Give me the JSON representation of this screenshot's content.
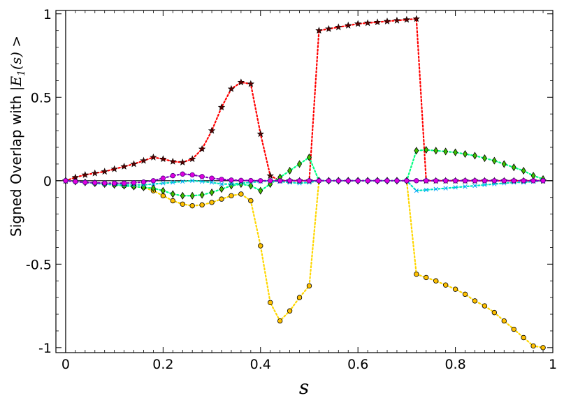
{
  "chart_data": {
    "type": "scatter",
    "xlabel": "s",
    "ylabel_prefix": "Signed Overlap with ",
    "ylabel_math": "|E",
    "ylabel_sub": "1",
    "ylabel_math_suffix": "(s) >",
    "xlim": [
      -0.02,
      1.0
    ],
    "ylim": [
      -1.03,
      1.02
    ],
    "x_ticks": [
      {
        "value": 0,
        "label": "0"
      },
      {
        "value": 0.2,
        "label": "0.2"
      },
      {
        "value": 0.4,
        "label": "0.4"
      },
      {
        "value": 0.6,
        "label": "0.6"
      },
      {
        "value": 0.8,
        "label": "0.8"
      },
      {
        "value": 1.0,
        "label": "1"
      }
    ],
    "y_ticks": [
      {
        "value": -1,
        "label": "-1"
      },
      {
        "value": -0.5,
        "label": "-0.5"
      },
      {
        "value": 0,
        "label": "0"
      },
      {
        "value": 0.5,
        "label": "0.5"
      },
      {
        "value": 1,
        "label": "1"
      }
    ],
    "grid": false,
    "legend": "none",
    "x": [
      0,
      0.02,
      0.04,
      0.06,
      0.08,
      0.1,
      0.12,
      0.14,
      0.16,
      0.18,
      0.2,
      0.22,
      0.24,
      0.26,
      0.28,
      0.3,
      0.32,
      0.34,
      0.36,
      0.38,
      0.4,
      0.42,
      0.44,
      0.46,
      0.48,
      0.5,
      0.52,
      0.54,
      0.56,
      0.58,
      0.6,
      0.62,
      0.64,
      0.66,
      0.68,
      0.7,
      0.72,
      0.74,
      0.76,
      0.78,
      0.8,
      0.82,
      0.84,
      0.86,
      0.88,
      0.9,
      0.92,
      0.94,
      0.96,
      0.98
    ],
    "series": [
      {
        "marker": "star",
        "line_color": "#ff0000",
        "fill": "#5a0000",
        "stroke": "#000000",
        "values": [
          0,
          0.02,
          0.035,
          0.045,
          0.055,
          0.07,
          0.085,
          0.1,
          0.12,
          0.14,
          0.13,
          0.115,
          0.11,
          0.13,
          0.19,
          0.3,
          0.44,
          0.55,
          0.59,
          0.58,
          0.28,
          0.03,
          0,
          0,
          0,
          0,
          0.9,
          0.91,
          0.92,
          0.93,
          0.94,
          0.945,
          0.95,
          0.955,
          0.96,
          0.965,
          0.97,
          0,
          0,
          0,
          0,
          0,
          0,
          0,
          0,
          0,
          0,
          0,
          0,
          0
        ]
      },
      {
        "marker": "circle",
        "line_color": "#ffd700",
        "fill": "#ffc000",
        "stroke": "#000000",
        "values": [
          0,
          -0.005,
          -0.01,
          -0.015,
          -0.02,
          -0.025,
          -0.03,
          -0.035,
          -0.04,
          -0.06,
          -0.09,
          -0.12,
          -0.14,
          -0.15,
          -0.145,
          -0.13,
          -0.11,
          -0.09,
          -0.08,
          -0.12,
          -0.39,
          -0.73,
          -0.84,
          -0.78,
          -0.7,
          -0.63,
          0,
          0,
          0,
          0,
          0,
          0,
          0,
          0,
          0,
          0,
          -0.56,
          -0.58,
          -0.6,
          -0.625,
          -0.65,
          -0.68,
          -0.72,
          -0.75,
          -0.79,
          -0.84,
          -0.89,
          -0.94,
          -0.99,
          -1.0
        ]
      },
      {
        "marker": "diamond",
        "line_color": "#00ff80",
        "fill": "#40c000",
        "stroke": "#000000",
        "values": [
          0,
          -0.005,
          -0.01,
          -0.015,
          -0.02,
          -0.025,
          -0.03,
          -0.035,
          -0.04,
          -0.045,
          -0.06,
          -0.08,
          -0.09,
          -0.09,
          -0.085,
          -0.07,
          -0.05,
          -0.03,
          -0.02,
          -0.03,
          -0.06,
          -0.02,
          0.02,
          0.06,
          0.1,
          0.14,
          0,
          0,
          0,
          0,
          0,
          0,
          0,
          0,
          0,
          0,
          0.18,
          0.185,
          0.18,
          0.175,
          0.17,
          0.16,
          0.15,
          0.135,
          0.12,
          0.1,
          0.08,
          0.06,
          0.03,
          0.01
        ]
      },
      {
        "marker": "cross",
        "line_color": "#00e0c0",
        "fill": "#00a0ff",
        "stroke": "#00a0ff",
        "values": [
          0,
          -0.005,
          -0.01,
          -0.015,
          -0.02,
          -0.02,
          -0.025,
          -0.025,
          -0.025,
          -0.02,
          -0.015,
          -0.01,
          -0.005,
          0,
          -0.005,
          -0.01,
          -0.02,
          -0.02,
          -0.015,
          -0.01,
          -0.005,
          0,
          -0.005,
          -0.01,
          -0.015,
          -0.01,
          0,
          0,
          0,
          0,
          0,
          0,
          0,
          0,
          0,
          0,
          -0.06,
          -0.055,
          -0.05,
          -0.045,
          -0.04,
          -0.035,
          -0.03,
          -0.025,
          -0.02,
          -0.015,
          -0.01,
          -0.01,
          -0.005,
          0
        ]
      },
      {
        "marker": "circle",
        "line_color": "#8000c0",
        "fill": "#e000e0",
        "stroke": "#4b0082",
        "values": [
          0,
          -0.005,
          -0.01,
          -0.012,
          -0.014,
          -0.015,
          -0.015,
          -0.012,
          -0.008,
          0,
          0.015,
          0.03,
          0.04,
          0.035,
          0.025,
          0.015,
          0.008,
          0.004,
          0.002,
          0.001,
          0,
          0,
          0,
          0,
          0,
          0,
          0,
          0,
          0,
          0,
          0,
          0,
          0,
          0,
          0,
          0,
          0,
          0,
          0,
          0,
          0,
          0,
          0,
          0,
          0,
          0,
          0,
          0,
          0,
          0
        ]
      }
    ]
  }
}
